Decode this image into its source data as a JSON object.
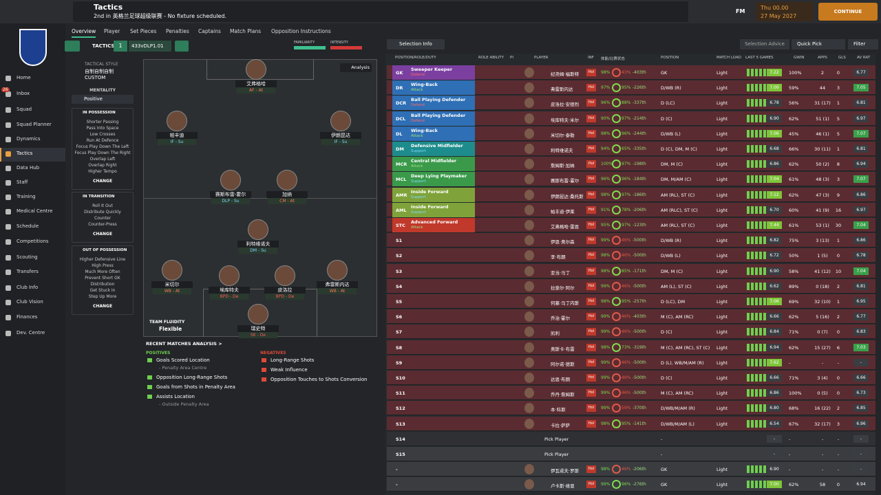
{
  "header": {
    "title": "Tactics",
    "subtitle": "2nd in 英格兰足球超级联赛 - No fixture scheduled.",
    "brand": "FM",
    "day": "Thu 00.00",
    "date": "27 May 2027",
    "continue": "CONTINUE"
  },
  "sidebar": {
    "badge": "26",
    "items": [
      "Home",
      "Inbox",
      "Squad",
      "Squad Planner",
      "Dynamics",
      "Tactics",
      "Data Hub",
      "Staff",
      "Training",
      "Medical Centre",
      "Schedule",
      "Competitions",
      "Scouting",
      "Transfers",
      "Club Info",
      "Club Vision",
      "Finances",
      "Dev. Centre"
    ]
  },
  "tabs": [
    "Overview",
    "Player",
    "Set Pieces",
    "Penalties",
    "Captains",
    "Match Plans",
    "Opposition Instructions"
  ],
  "tactics_bar": {
    "label": "TACTICS",
    "slot": "1",
    "name": "433vDLP1.01",
    "familiarity": "FAMILIARITY",
    "intensity": "INTENSITY",
    "selection_info": "Selection Info",
    "selection_advice": "Selection Advice",
    "quick_pick": "Quick Pick",
    "filter": "Filter",
    "analysis": "Analysis"
  },
  "style_panel": {
    "style_title": "TACTICAL STYLE",
    "style": "自制自制自制CUSTOM",
    "mentality_title": "MENTALITY",
    "mentality": "Positive",
    "sections": [
      {
        "title": "IN POSSESSION",
        "items": [
          "Shorter Passing",
          "Pass Into Space",
          "Low Crosses",
          "Run At Defence",
          "Focus Play Down The Left",
          "Focus Play Down The Right",
          "Overlap Left",
          "Overlap Right",
          "Higher Tempo"
        ],
        "button": "CHANGE"
      },
      {
        "title": "IN TRANSITION",
        "items": [
          "Roll It Out",
          "Distribute Quickly",
          "Counter",
          "Counter-Press"
        ],
        "button": "CHANGE"
      },
      {
        "title": "OUT OF POSSESSION",
        "items": [
          "Higher Defensive Line",
          "High Press",
          "Much More Often",
          "Prevent Short GK",
          "Distribution",
          "Get Stuck In",
          "Step Up More"
        ],
        "button": "CHANGE"
      }
    ]
  },
  "pitch": {
    "fluidity_title": "TEAM FLUIDITY",
    "fluidity": "Flexible",
    "players": [
      {
        "name": "艾弗格哈",
        "role": "AF - At"
      },
      {
        "name": "帕丰迪",
        "role": "IF - Su"
      },
      {
        "name": "伊朗昆达",
        "role": "IF - Su"
      },
      {
        "name": "赛斯布雷-霍尔",
        "role": "DLP - Su"
      },
      {
        "name": "加纳",
        "role": "CM - At"
      },
      {
        "name": "利特维诺夫",
        "role": "DM - Su"
      },
      {
        "name": "米切尔",
        "role": "WB - At"
      },
      {
        "name": "埃库特夫",
        "role": "BPD - De"
      },
      {
        "name": "皮洛拉",
        "role": "BPD - De"
      },
      {
        "name": "弗雷斯内达",
        "role": "WB - At"
      },
      {
        "name": "瑞史特",
        "role": "SK - De"
      }
    ]
  },
  "analysis": {
    "title": "RECENT MATCHES ANALYSIS >",
    "positives_title": "POSITIVES",
    "positives": [
      {
        "text": "Goals Scored Location",
        "sub": "- Penalty Area Centre"
      },
      {
        "text": "Opposition Long-Range Shots"
      },
      {
        "text": "Goals from Shots in Penalty Area"
      },
      {
        "text": "Assists Location",
        "sub": "- Outside Penalty Area"
      }
    ],
    "negatives_title": "NEGATIVES",
    "negatives": [
      "Long-Range Shots",
      "Weak Influence",
      "Opposition Touches to Shots Conversion"
    ]
  },
  "table": {
    "columns": [
      "POSITION/ROLE/DUTY",
      "ROLE ABILITY",
      "PI",
      "PLAYER",
      "INF",
      "体能/比赛状态",
      "POSITION",
      "MATCH LOAD",
      "LAST 5 GAMES",
      "GWIN",
      "APPS",
      "GLS",
      "AV RAT"
    ],
    "rows": [
      {
        "pos": "GK",
        "role": "Sweeper Keeper",
        "duty": "Defend",
        "name": "纪尧姆·福斯特",
        "inf": "Hol",
        "cond": "98%",
        "sharp": "43%",
        "rank": "-403th",
        "positions": "GK",
        "load": "Light",
        "form": "7.22",
        "gwin": "100%",
        "apps": "2",
        "gls": "0",
        "rat": "6.77"
      },
      {
        "pos": "DR",
        "role": "Wing-Back",
        "duty": "Attack",
        "name": "弗雷斯内达",
        "inf": "Hol",
        "cond": "97%",
        "sharp": "95%",
        "rank": "-226th",
        "positions": "D/WB (R)",
        "load": "Light",
        "form": "7.00",
        "gwin": "59%",
        "apps": "44",
        "gls": "3",
        "rat": "7.05"
      },
      {
        "pos": "DCR",
        "role": "Ball Playing Defender",
        "duty": "Defend",
        "name": "皮洛拉·安德烈",
        "inf": "Hol",
        "cond": "96%",
        "sharp": "88%",
        "rank": "-337th",
        "positions": "D (LC)",
        "load": "Light",
        "form": "6.78",
        "gwin": "56%",
        "apps": "31 (17)",
        "gls": "1",
        "rat": "6.81"
      },
      {
        "pos": "DCL",
        "role": "Ball Playing Defender",
        "duty": "Defend",
        "name": "埃库特夫·米尔",
        "inf": "Hol",
        "cond": "90%",
        "sharp": "97%",
        "rank": "-214th",
        "positions": "D (C)",
        "load": "Light",
        "form": "6.90",
        "gwin": "62%",
        "apps": "51 (1)",
        "gls": "5",
        "rat": "6.97"
      },
      {
        "pos": "DL",
        "role": "Wing-Back",
        "duty": "Attack",
        "name": "米切尔·泰勒",
        "inf": "Hol",
        "cond": "98%",
        "sharp": "96%",
        "rank": "-244th",
        "positions": "D/WB (L)",
        "load": "Light",
        "form": "7.06",
        "gwin": "45%",
        "apps": "46 (1)",
        "gls": "5",
        "rat": "7.07"
      },
      {
        "pos": "DM",
        "role": "Defensive Midfielder",
        "duty": "Support",
        "name": "利特维诺夫",
        "inf": "Hol",
        "cond": "94%",
        "sharp": "65%",
        "rank": "-335th",
        "positions": "D (C), DM, M (C)",
        "load": "Light",
        "form": "6.68",
        "gwin": "66%",
        "apps": "30 (11)",
        "gls": "1",
        "rat": "6.81"
      },
      {
        "pos": "MCR",
        "role": "Central Midfielder",
        "duty": "Attack",
        "name": "詹姆斯·加纳",
        "inf": "Hol",
        "cond": "100%",
        "sharp": "97%",
        "rank": "-198th",
        "positions": "DM, M (C)",
        "load": "Light",
        "form": "6.86",
        "gwin": "62%",
        "apps": "50 (2)",
        "gls": "8",
        "rat": "6.94"
      },
      {
        "pos": "MCL",
        "role": "Deep Lying Playmaker",
        "duty": "Support",
        "name": "赛斯布雷-霍尔",
        "inf": "Hol",
        "cond": "96%",
        "sharp": "96%",
        "rank": "-184th",
        "positions": "DM, M/AM (C)",
        "load": "Light",
        "form": "7.04",
        "gwin": "61%",
        "apps": "48 (3)",
        "gls": "3",
        "rat": "7.07"
      },
      {
        "pos": "AMR",
        "role": "Inside Forward",
        "duty": "Support",
        "name": "伊朗昆达·桑托斯",
        "inf": "Hol",
        "cond": "98%",
        "sharp": "97%",
        "rank": "-186th",
        "positions": "AM (RL), ST (C)",
        "load": "Light",
        "form": "7.12",
        "gwin": "62%",
        "apps": "47 (3)",
        "gls": "9",
        "rat": "6.86"
      },
      {
        "pos": "AML",
        "role": "Inside Forward",
        "duty": "Support",
        "name": "帕丰迪·伊莱",
        "inf": "Hol",
        "cond": "91%",
        "sharp": "78%",
        "rank": "-206th",
        "positions": "AM (RLC), ST (C)",
        "load": "Light",
        "form": "6.70",
        "gwin": "60%",
        "apps": "41 (9)",
        "gls": "16",
        "rat": "6.97"
      },
      {
        "pos": "STC",
        "role": "Advanced Forward",
        "duty": "Attack",
        "name": "艾弗格哈·雷恩",
        "inf": "Hol",
        "cond": "95%",
        "sharp": "97%",
        "rank": "-123th",
        "positions": "AM (RL), ST (C)",
        "load": "Light",
        "form": "7.44",
        "gwin": "61%",
        "apps": "53 (1)",
        "gls": "30",
        "rat": "7.04"
      },
      {
        "pos": "S1",
        "name": "伊恩·奥尔森",
        "inf": "Hol",
        "cond": "99%",
        "sharp": "46%",
        "rank": "-500th",
        "positions": "D/WB (R)",
        "load": "Light",
        "form": "6.82",
        "gwin": "75%",
        "apps": "3 (13)",
        "gls": "1",
        "rat": "6.86"
      },
      {
        "pos": "S2",
        "name": "李·布朗",
        "inf": "Hol",
        "cond": "98%",
        "sharp": "46%",
        "rank": "-500th",
        "positions": "D/WB (L)",
        "load": "Light",
        "form": "6.72",
        "gwin": "50%",
        "apps": "1 (5)",
        "gls": "0",
        "rat": "6.78"
      },
      {
        "pos": "S3",
        "name": "亚当·马丁",
        "inf": "Hol",
        "cond": "98%",
        "sharp": "85%",
        "rank": "-171th",
        "positions": "DM, M (C)",
        "load": "Light",
        "form": "6.90",
        "gwin": "58%",
        "apps": "41 (12)",
        "gls": "10",
        "rat": "7.04"
      },
      {
        "pos": "S4",
        "name": "拉斐尔·阿尔",
        "inf": "Hol",
        "cond": "99%",
        "sharp": "46%",
        "rank": "-500th",
        "positions": "AM (L), ST (C)",
        "load": "Light",
        "form": "6.62",
        "gwin": "89%",
        "apps": "0 (18)",
        "gls": "2",
        "rat": "6.81"
      },
      {
        "pos": "S5",
        "name": "何塞·马丁内斯",
        "inf": "Hol",
        "cond": "98%",
        "sharp": "95%",
        "rank": "-257th",
        "positions": "D (LC), DM",
        "load": "Light",
        "form": "7.06",
        "gwin": "69%",
        "apps": "32 (10)",
        "gls": "1",
        "rat": "6.95"
      },
      {
        "pos": "S6",
        "name": "乔治·霍尔",
        "inf": "Hol",
        "cond": "99%",
        "sharp": "46%",
        "rank": "-403th",
        "positions": "M (C), AM (RC)",
        "load": "Light",
        "form": "6.66",
        "gwin": "62%",
        "apps": "5 (16)",
        "gls": "2",
        "rat": "6.77"
      },
      {
        "pos": "S7",
        "name": "凯利",
        "inf": "Hol",
        "cond": "99%",
        "sharp": "46%",
        "rank": "-500th",
        "positions": "D (C)",
        "load": "Light",
        "form": "6.84",
        "gwin": "71%",
        "apps": "0 (7)",
        "gls": "0",
        "rat": "6.83"
      },
      {
        "pos": "S8",
        "name": "奥斯卡·布雷",
        "inf": "Hol",
        "cond": "98%",
        "sharp": "73%",
        "rank": "-319th",
        "positions": "M (C), AM (RC), ST (C)",
        "load": "Light",
        "form": "6.94",
        "gwin": "62%",
        "apps": "15 (27)",
        "gls": "6",
        "rat": "7.03"
      },
      {
        "pos": "S9",
        "name": "阿尔诺·德斯",
        "inf": "Hol",
        "cond": "99%",
        "sharp": "46%",
        "rank": "-500th",
        "positions": "D (L), WB/M/AM (R)",
        "load": "Light",
        "form": "7.62",
        "gwin": "-",
        "apps": "-",
        "gls": "-",
        "rat": "-"
      },
      {
        "pos": "S10",
        "name": "达恩·布朗",
        "inf": "Hol",
        "cond": "99%",
        "sharp": "46%",
        "rank": "-500th",
        "positions": "D (C)",
        "load": "Light",
        "form": "6.66",
        "gwin": "71%",
        "apps": "3 (4)",
        "gls": "0",
        "rat": "6.66"
      },
      {
        "pos": "S11",
        "name": "乔丹·詹姆斯",
        "inf": "Hol",
        "cond": "99%",
        "sharp": "46%",
        "rank": "-500th",
        "positions": "M (C), AM (RC)",
        "load": "Light",
        "form": "6.86",
        "gwin": "100%",
        "apps": "0 (5)",
        "gls": "0",
        "rat": "6.73"
      },
      {
        "pos": "S12",
        "name": "本·科斯",
        "inf": "Hol",
        "cond": "99%",
        "sharp": "59%",
        "rank": "-370th",
        "positions": "D/WB/M/AM (R)",
        "load": "Light",
        "form": "6.80",
        "gwin": "68%",
        "apps": "16 (22)",
        "gls": "2",
        "rat": "6.85"
      },
      {
        "pos": "S13",
        "name": "卡拉·萨萨",
        "inf": "Hol",
        "cond": "98%",
        "sharp": "95%",
        "rank": "-141th",
        "positions": "D/WB/M/AM (L)",
        "load": "Light",
        "form": "6.54",
        "gwin": "67%",
        "apps": "32 (17)",
        "gls": "3",
        "rat": "6.96"
      },
      {
        "pos": "S14",
        "name": "Pick Player",
        "positions": "-",
        "form": "-",
        "gwin": "-",
        "apps": "-",
        "gls": "-",
        "rat": "-"
      },
      {
        "pos": "S15",
        "name": "Pick Player",
        "positions": "-",
        "form": "-",
        "gwin": "-",
        "apps": "-",
        "gls": "-",
        "rat": "-"
      },
      {
        "pos": "-",
        "name": "伊瓦诺夫·罗斯",
        "inf": "Hol",
        "cond": "98%",
        "sharp": "46%",
        "rank": "-206th",
        "positions": "GK",
        "load": "Light",
        "form": "6.90",
        "gwin": "-",
        "apps": "-",
        "gls": "-",
        "rat": "-"
      },
      {
        "pos": "-",
        "name": "卢卡斯·维恩",
        "inf": "Hol",
        "cond": "99%",
        "sharp": "96%",
        "rank": "-276th",
        "positions": "GK",
        "load": "Light",
        "form": "7.00",
        "gwin": "62%",
        "apps": "58",
        "gls": "0",
        "rat": "6.94"
      }
    ]
  }
}
